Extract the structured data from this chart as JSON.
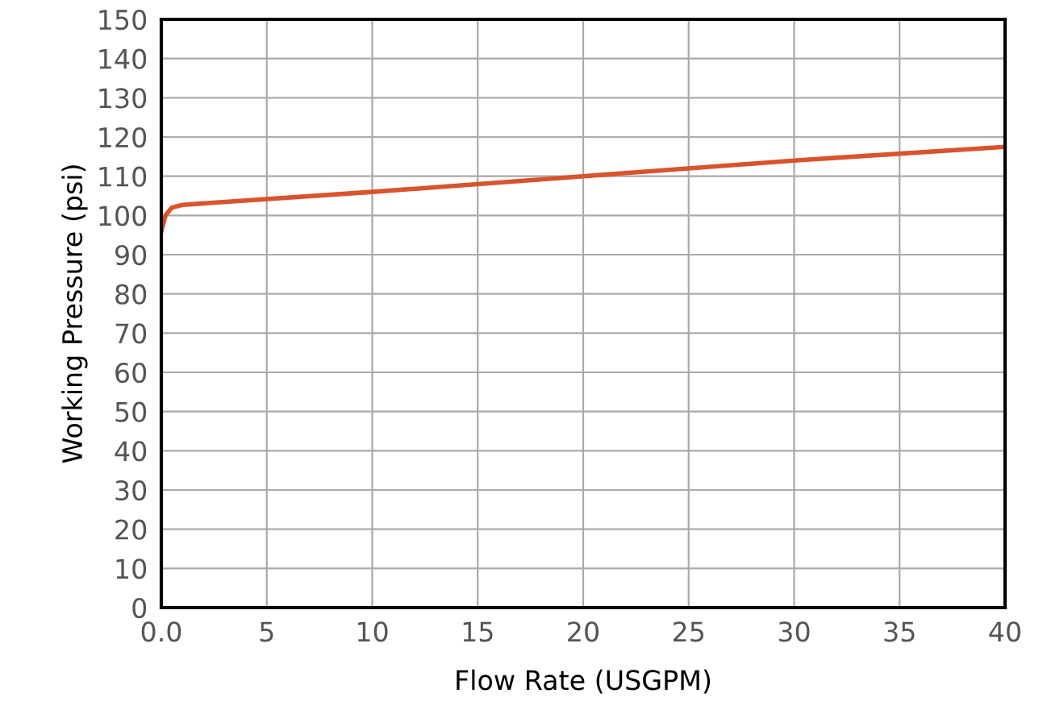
{
  "chart_data": {
    "type": "line",
    "xlabel": "Flow Rate (USGPM)",
    "ylabel": "Working Pressure (psi)",
    "series": [
      {
        "color": "#d9532c",
        "x": [
          0,
          0.2,
          0.5,
          1,
          10,
          20,
          30,
          40
        ],
        "values": [
          96,
          100,
          102,
          102.7,
          106,
          110,
          114,
          117.5
        ]
      }
    ],
    "xlim": [
      0,
      40
    ],
    "xticks": [
      {
        "value": 0,
        "label": "0.0"
      },
      5,
      10,
      15,
      20,
      25,
      30,
      35,
      40
    ],
    "ylim": [
      0,
      150
    ],
    "yticks": [
      0,
      10,
      20,
      30,
      40,
      50,
      60,
      70,
      80,
      90,
      100,
      110,
      120,
      130,
      140,
      150
    ],
    "grid": true,
    "marker": "none",
    "line_style": "solid"
  }
}
